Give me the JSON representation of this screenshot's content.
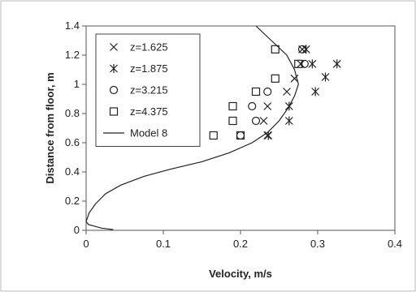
{
  "chart_data": {
    "type": "scatter",
    "title": "",
    "xlabel": "Velocity, m/s",
    "ylabel": "Distance from floor, m",
    "xlim": [
      0,
      0.4
    ],
    "ylim": [
      0,
      1.4
    ],
    "x_ticks": [
      "0",
      "0.1",
      "0.2",
      "0.3",
      "0.4"
    ],
    "y_ticks": [
      "0",
      "0.2",
      "0.4",
      "0.6",
      "0.8",
      "1",
      "1.2",
      "1.4"
    ],
    "x_tick_values": [
      0,
      0.1,
      0.2,
      0.3,
      0.4
    ],
    "y_tick_values": [
      0,
      0.2,
      0.4,
      0.6,
      0.8,
      1.0,
      1.2,
      1.4
    ],
    "grid": false,
    "legend_position": "top-left",
    "series": [
      {
        "name": "z=1.625",
        "marker": "x",
        "points": [
          [
            0.235,
            0.65
          ],
          [
            0.23,
            0.75
          ],
          [
            0.235,
            0.85
          ],
          [
            0.26,
            0.95
          ],
          [
            0.27,
            1.04
          ],
          [
            0.278,
            1.14
          ],
          [
            0.28,
            1.24
          ]
        ]
      },
      {
        "name": "z=1.875",
        "marker": "asterisk",
        "points": [
          [
            0.236,
            0.65
          ],
          [
            0.263,
            0.75
          ],
          [
            0.263,
            0.85
          ],
          [
            0.297,
            0.95
          ],
          [
            0.31,
            1.05
          ],
          [
            0.325,
            1.14
          ],
          [
            0.293,
            1.14
          ],
          [
            0.285,
            1.24
          ]
        ]
      },
      {
        "name": "z=3.215",
        "marker": "circle",
        "points": [
          [
            0.2,
            0.65
          ],
          [
            0.22,
            0.75
          ],
          [
            0.215,
            0.85
          ],
          [
            0.235,
            0.95
          ],
          [
            0.283,
            1.14
          ],
          [
            0.28,
            1.24
          ]
        ]
      },
      {
        "name": "z=4.375",
        "marker": "square",
        "points": [
          [
            0.165,
            0.65
          ],
          [
            0.2,
            0.65
          ],
          [
            0.19,
            0.75
          ],
          [
            0.19,
            0.85
          ],
          [
            0.22,
            0.95
          ],
          [
            0.245,
            1.04
          ],
          [
            0.275,
            1.14
          ],
          [
            0.245,
            1.24
          ]
        ]
      },
      {
        "name": "Model 8",
        "marker": "line",
        "points": [
          [
            0.22,
            1.4
          ],
          [
            0.24,
            1.3
          ],
          [
            0.26,
            1.2
          ],
          [
            0.27,
            1.1
          ],
          [
            0.275,
            1.0
          ],
          [
            0.27,
            0.92
          ],
          [
            0.262,
            0.84
          ],
          [
            0.25,
            0.75
          ],
          [
            0.235,
            0.67
          ],
          [
            0.215,
            0.6
          ],
          [
            0.185,
            0.53
          ],
          [
            0.15,
            0.47
          ],
          [
            0.11,
            0.42
          ],
          [
            0.075,
            0.37
          ],
          [
            0.045,
            0.31
          ],
          [
            0.025,
            0.25
          ],
          [
            0.012,
            0.18
          ],
          [
            0.004,
            0.12
          ],
          [
            0.0,
            0.06
          ],
          [
            0.003,
            0.04
          ],
          [
            0.02,
            0.015
          ],
          [
            0.035,
            0.005
          ]
        ]
      }
    ]
  }
}
